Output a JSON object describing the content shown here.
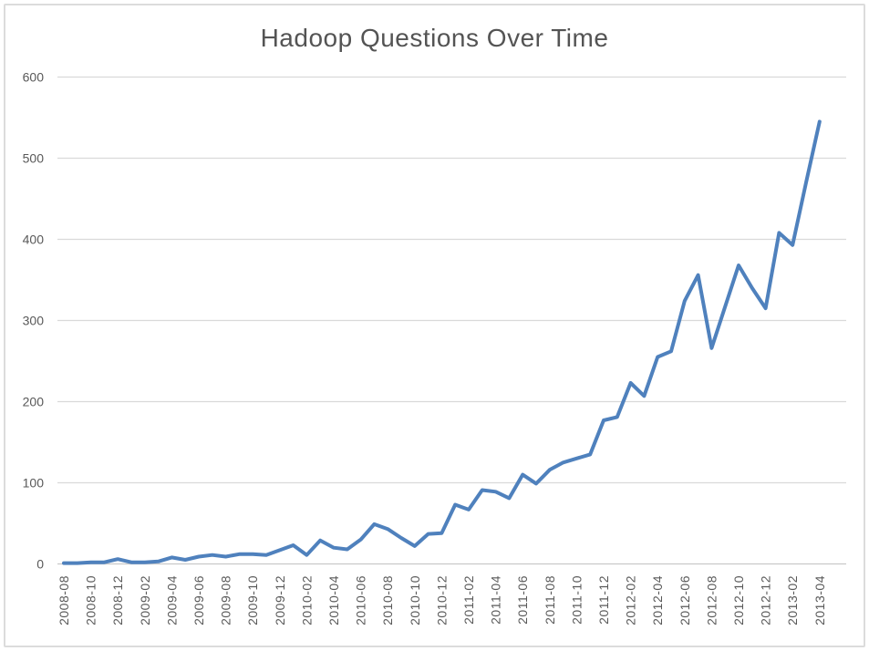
{
  "chart_data": {
    "type": "line",
    "title": "Hadoop Questions Over Time",
    "xlabel": "",
    "ylabel": "",
    "ylim": [
      0,
      600
    ],
    "yticks": [
      0,
      100,
      200,
      300,
      400,
      500,
      600
    ],
    "x_label_every": 2,
    "grid": "horizontal",
    "legend": "none",
    "x": [
      "2008-08",
      "2008-09",
      "2008-10",
      "2008-11",
      "2008-12",
      "2009-01",
      "2009-02",
      "2009-03",
      "2009-04",
      "2009-05",
      "2009-06",
      "2009-07",
      "2009-08",
      "2009-09",
      "2009-10",
      "2009-11",
      "2009-12",
      "2010-01",
      "2010-02",
      "2010-03",
      "2010-04",
      "2010-05",
      "2010-06",
      "2010-07",
      "2010-08",
      "2010-09",
      "2010-10",
      "2010-11",
      "2010-12",
      "2011-01",
      "2011-02",
      "2011-03",
      "2011-04",
      "2011-05",
      "2011-06",
      "2011-07",
      "2011-08",
      "2011-09",
      "2011-10",
      "2011-11",
      "2011-12",
      "2012-01",
      "2012-02",
      "2012-03",
      "2012-04",
      "2012-05",
      "2012-06",
      "2012-07",
      "2012-08",
      "2012-09",
      "2012-10",
      "2012-11",
      "2012-12",
      "2013-01",
      "2013-02",
      "2013-03",
      "2013-04"
    ],
    "values": [
      1,
      1,
      2,
      2,
      6,
      2,
      2,
      3,
      8,
      5,
      9,
      11,
      9,
      12,
      12,
      11,
      17,
      23,
      11,
      29,
      20,
      18,
      30,
      49,
      43,
      32,
      22,
      37,
      38,
      73,
      67,
      91,
      89,
      81,
      110,
      99,
      116,
      125,
      130,
      135,
      177,
      181,
      223,
      207,
      255,
      262,
      324,
      356,
      266,
      317,
      368,
      340,
      315,
      408,
      393,
      470,
      545
    ],
    "colors": {
      "line": "#4f81bd",
      "gridline": "#d9d9d9",
      "axis_line": "#c9c9c9",
      "axis_text": "#595959",
      "title_text": "#545454",
      "border": "#dcdcdc",
      "background": "#ffffff"
    }
  }
}
